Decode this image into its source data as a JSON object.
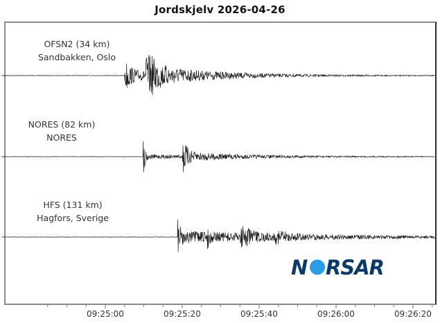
{
  "title": "Jordskjelv 2026-04-26",
  "chart_data": {
    "type": "line",
    "subtype": "seismogram",
    "title": "Jordskjelv 2026-04-26",
    "xlabel": "",
    "ylabel": "",
    "grid": false,
    "legend": "none",
    "x_axis": {
      "tick_labels": [
        "09:25:00",
        "09:25:20",
        "09:25:40",
        "09:26:00",
        "09:26:20"
      ],
      "major_tick_interval_s": 20,
      "minor_tick_interval_s": 5,
      "range": [
        "09:24:42",
        "09:26:25"
      ]
    },
    "series": [
      {
        "name": "OFSN2 (34 km)",
        "location": "Sandbakken, Oslo",
        "distance_km": 34,
        "first_arrival": "09:25:05",
        "p_arrival_approx": "09:25:05",
        "s_arrival_approx": "09:25:10",
        "peak_relative_amplitude": 1.0
      },
      {
        "name": "NORES (82 km)",
        "location": "NORES",
        "distance_km": 82,
        "first_arrival": "09:25:10",
        "p_arrival_approx": "09:25:10",
        "s_arrival_approx": "09:25:20",
        "peak_relative_amplitude": 0.75
      },
      {
        "name": "HFS (131 km)",
        "location": "Hagfors, Sverige",
        "distance_km": 131,
        "first_arrival": "09:25:19",
        "p_arrival_approx": "09:25:19",
        "s_arrival_approx": "09:25:37",
        "peak_relative_amplitude": 1.0
      }
    ]
  },
  "stations": [
    {
      "line1": "OFSN2 (34 km)",
      "line2": "Sandbakken, Oslo"
    },
    {
      "line1": "NORES (82 km)",
      "line2": "NORES"
    },
    {
      "line1": "HFS (131 km)",
      "line2": "Hagfors, Sverige"
    }
  ],
  "ticks": [
    "09:25:00",
    "09:25:20",
    "09:25:40",
    "09:26:00",
    "09:26:20"
  ],
  "logo": {
    "text": "NORSAR",
    "color_dark": "#0e3a6a",
    "color_accent": "#2b9de3"
  },
  "colors": {
    "trace": "#1a1a1a",
    "frame": "#8a8a8a",
    "baseline": "#666666"
  }
}
